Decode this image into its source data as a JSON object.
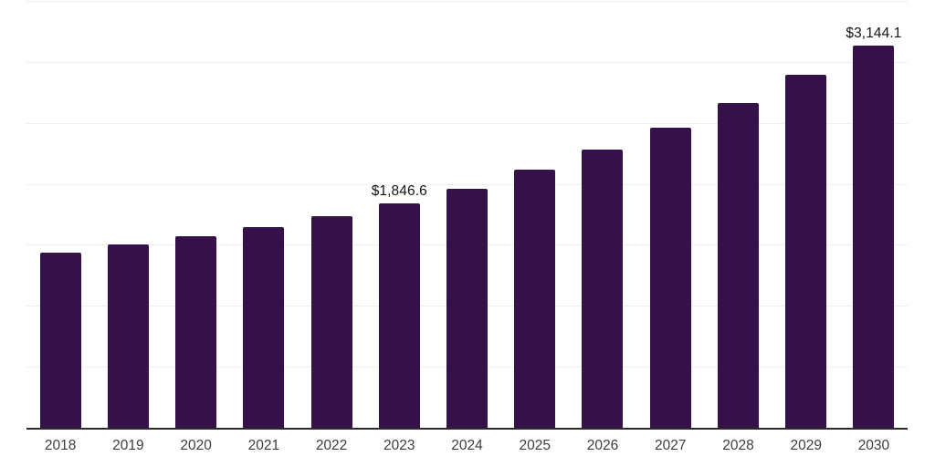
{
  "chart_data": {
    "type": "bar",
    "title": "",
    "xlabel": "",
    "ylabel": "",
    "categories": [
      "2018",
      "2019",
      "2020",
      "2021",
      "2022",
      "2023",
      "2024",
      "2025",
      "2026",
      "2027",
      "2028",
      "2029",
      "2030"
    ],
    "values": [
      1445,
      1510,
      1575,
      1650,
      1740,
      1846.6,
      1970,
      2125,
      2290,
      2470,
      2670,
      2905,
      3144.1
    ],
    "data_labels": {
      "2023": "$1,846.6",
      "2030": "$3,144.1"
    },
    "ylim": [
      0,
      3500
    ],
    "gridline_step": 500,
    "grid": true,
    "legend": "none",
    "y_tick_labels_visible": false,
    "colors": {
      "bar": "#351149",
      "gridline": "#efefef",
      "axis_line": "#2b2b2b",
      "data_label_text": "#141414",
      "tick_label_text": "#3d3d3d",
      "background": "#ffffff"
    }
  }
}
